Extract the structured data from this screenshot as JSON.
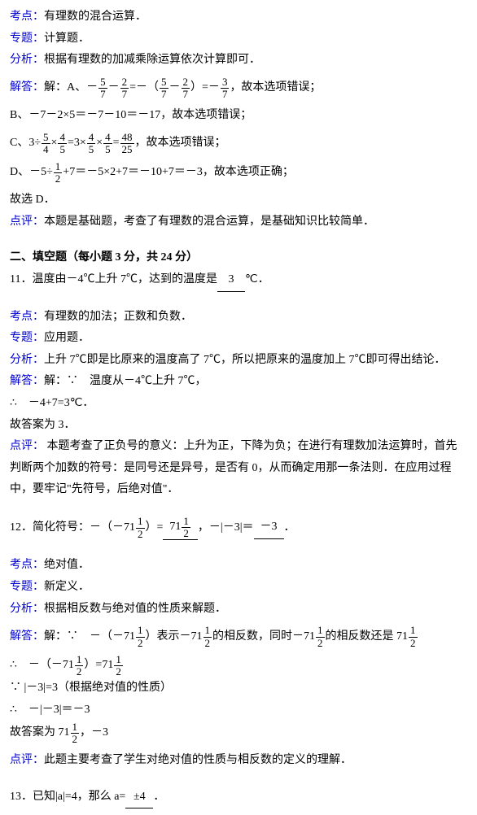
{
  "q10": {
    "kd_label": "考点：",
    "kd": "有理数的混合运算．",
    "zt_label": "专题：",
    "zt": "计算题．",
    "fx_label": "分析：",
    "fx": "根据有理数的加减乘除运算依次计算即可．",
    "jd_label": "解答：",
    "jd_prefix": "解：A、",
    "a_txt1": "－",
    "a_f1n": "5",
    "a_f1d": "7",
    "a_txt2": "－",
    "a_f2n": "2",
    "a_f2d": "7",
    "a_txt3": "=－（",
    "a_f3n": "5",
    "a_f3d": "7",
    "a_txt4": "－",
    "a_f4n": "2",
    "a_f4d": "7",
    "a_txt5": "）=－",
    "a_f5n": "3",
    "a_f5d": "7",
    "a_tail": "，故本选项错误；",
    "b_line": "B、－7－2×5＝－7－10＝－17，故本选项错误；",
    "c_pre": "C、3÷",
    "c_f1n": "5",
    "c_f1d": "4",
    "c_t1": "×",
    "c_f2n": "4",
    "c_f2d": "5",
    "c_t2": "=3×",
    "c_f3n": "4",
    "c_f3d": "5",
    "c_t3": "×",
    "c_f4n": "4",
    "c_f4d": "5",
    "c_t4": "=",
    "c_f5n": "48",
    "c_f5d": "25",
    "c_tail": "，故本选项错误；",
    "d_pre": "D、－5÷",
    "d_f1n": "1",
    "d_f1d": "2",
    "d_tail": "+7＝－5×2+7＝－10+7＝－3，故本选项正确；",
    "pick": "故选 D．",
    "dp_label": "点评：",
    "dp": "本题是基础题，考查了有理数的混合运算，是基础知识比较简单．"
  },
  "sec2": {
    "title": "二、填空题（每小题 3 分，共 24 分）"
  },
  "q11": {
    "stem_pre": "11．温度由－4℃上升 7℃，达到的温度是",
    "blank": "3",
    "stem_post": "℃．",
    "kd_label": "考点：",
    "kd": "有理数的加法；正数和负数．",
    "zt_label": "专题：",
    "zt": "应用题．",
    "fx_label": "分析：",
    "fx": "上升 7℃即是比原来的温度高了 7℃，所以把原来的温度加上 7℃即可得出结论．",
    "jd_label": "解答：",
    "jd1": "解：∵　温度从－4℃上升 7℃，",
    "jd2": "∴　－4+7=3℃．",
    "jd3": "故答案为 3．",
    "dp_label": "点评：",
    "dp": "本题考查了正负号的意义：上升为正，下降为负；在进行有理数加法运算时，首先判断两个加数的符号：是同号还是异号，是否有 0，从而确定用那一条法则．在应用过程中，要牢记\"先符号，后绝对值\"．"
  },
  "q12": {
    "stem_pre": "12．简化符号：－（－71",
    "fn": "1",
    "fd": "2",
    "stem_mid1": "）=",
    "blank1_pre": "71",
    "stem_mid2": "，－|－3|＝",
    "blank2": "－3",
    "stem_post": "．",
    "kd_label": "考点：",
    "kd": "绝对值．",
    "zt_label": "专题：",
    "zt": "新定义．",
    "fx_label": "分析：",
    "fx": "根据相反数与绝对值的性质来解题．",
    "jd_label": "解答：",
    "jd1_pre": "解：∵　－（－71",
    "jd1_mid": "）表示－71",
    "jd1_mid2": "的相反数，同时－71",
    "jd1_tail": "的相反数还是 71",
    "jd2_pre": "∴　－（－71",
    "jd2_mid": "）=71",
    "jd3": "∵ |－3|=3（根据绝对值的性质）",
    "jd4": "∴　－|－3|＝－3",
    "jd5_pre": "故答案为 71",
    "jd5_tail": "，－3",
    "dp_label": "点评：",
    "dp": "此题主要考查了学生对绝对值的性质与相反数的定义的理解．"
  },
  "q13": {
    "stem_pre": "13．已知|a|=4，那么 a=",
    "blank": "±4",
    "stem_post": "．"
  }
}
